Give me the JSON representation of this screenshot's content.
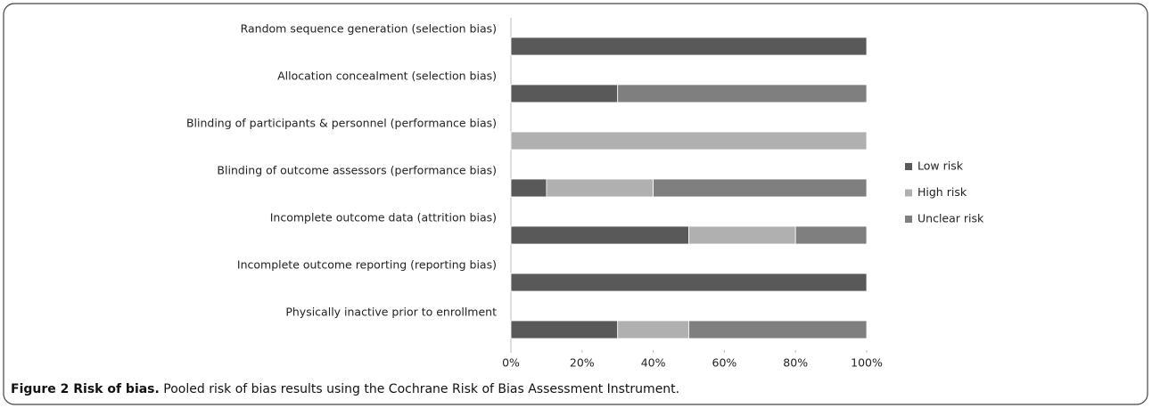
{
  "chart_data": {
    "type": "stacked-barh",
    "categories": [
      "Random sequence generation (selection bias)",
      "Allocation concealment (selection bias)",
      "Blinding of participants & personnel (performance bias)",
      "Blinding of outcome assessors (performance bias)",
      "Incomplete outcome data (attrition bias)",
      "Incomplete outcome reporting (reporting bias)",
      "Physically inactive prior to enrollment"
    ],
    "series": [
      {
        "name": "Low risk",
        "color": "#595959",
        "values": [
          100,
          30,
          0,
          10,
          50,
          100,
          30
        ]
      },
      {
        "name": "High risk",
        "color": "#b0b0b0",
        "values": [
          0,
          0,
          100,
          30,
          30,
          0,
          20
        ]
      },
      {
        "name": "Unclear risk",
        "color": "#7f7f7f",
        "values": [
          0,
          70,
          0,
          60,
          20,
          0,
          50
        ]
      }
    ],
    "xlim": [
      0,
      100
    ],
    "xticks": [
      {
        "value": 0,
        "label": "0%"
      },
      {
        "value": 20,
        "label": "20%"
      },
      {
        "value": 40,
        "label": "40%"
      },
      {
        "value": 60,
        "label": "60%"
      },
      {
        "value": 80,
        "label": "80%"
      },
      {
        "value": 100,
        "label": "100%"
      }
    ],
    "grid": false,
    "legend": "right"
  },
  "caption": {
    "label": "Figure 2 Risk of bias.",
    "text": "Pooled risk of bias results using the Cochrane Risk of Bias Assessment Instrument."
  }
}
